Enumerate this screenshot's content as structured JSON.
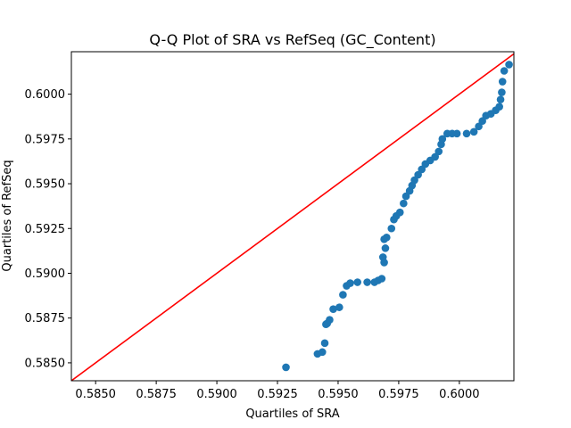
{
  "chart_data": {
    "type": "scatter",
    "title": "Q-Q Plot of SRA vs RefSeq (GC_Content)",
    "xlabel": "Quartiles of SRA",
    "ylabel": "Quartiles of RefSeq",
    "xlim": [
      0.584,
      0.60225
    ],
    "ylim": [
      0.584,
      0.60237
    ],
    "xticks": [
      0.585,
      0.5875,
      0.59,
      0.5925,
      0.595,
      0.5975,
      0.6
    ],
    "xtick_labels": [
      "0.5850",
      "0.5875",
      "0.5900",
      "0.5925",
      "0.5950",
      "0.5975",
      "0.6000"
    ],
    "yticks": [
      0.585,
      0.5875,
      0.59,
      0.5925,
      0.595,
      0.5975,
      0.6
    ],
    "ytick_labels": [
      "0.5850",
      "0.5875",
      "0.5900",
      "0.5925",
      "0.5950",
      "0.5975",
      "0.6000"
    ],
    "grid": false,
    "colors": {
      "points": "#1f77b4",
      "reference_line": "#ff0000"
    },
    "reference_line": {
      "from": [
        0.584,
        0.584
      ],
      "to": [
        0.60225,
        0.60225
      ]
    },
    "points": {
      "x": [
        0.59285,
        0.59415,
        0.59435,
        0.59445,
        0.5945,
        0.59455,
        0.59465,
        0.5948,
        0.59505,
        0.5952,
        0.59535,
        0.5955,
        0.5958,
        0.5962,
        0.5965,
        0.59665,
        0.5968,
        0.5969,
        0.59685,
        0.59695,
        0.5969,
        0.597,
        0.5972,
        0.5973,
        0.5974,
        0.59755,
        0.5977,
        0.5978,
        0.59795,
        0.59805,
        0.59815,
        0.5983,
        0.59845,
        0.5986,
        0.5988,
        0.599,
        0.59915,
        0.59925,
        0.5993,
        0.5995,
        0.5997,
        0.5999,
        0.6003,
        0.6006,
        0.6008,
        0.60095,
        0.6011,
        0.6013,
        0.6015,
        0.60165,
        0.6017,
        0.60175,
        0.60178,
        0.60185,
        0.60205
      ],
      "y": [
        0.58475,
        0.5855,
        0.5856,
        0.5861,
        0.58715,
        0.5872,
        0.5874,
        0.588,
        0.5881,
        0.5888,
        0.5893,
        0.58945,
        0.5895,
        0.5895,
        0.5895,
        0.5896,
        0.5897,
        0.5906,
        0.5909,
        0.5914,
        0.5919,
        0.592,
        0.5925,
        0.593,
        0.5932,
        0.5934,
        0.5939,
        0.5943,
        0.5946,
        0.5949,
        0.5952,
        0.5955,
        0.5958,
        0.5961,
        0.5963,
        0.5965,
        0.5968,
        0.5972,
        0.5975,
        0.5978,
        0.5978,
        0.5978,
        0.5978,
        0.5979,
        0.5982,
        0.5985,
        0.5988,
        0.5989,
        0.5991,
        0.5993,
        0.5997,
        0.6001,
        0.6007,
        0.6013,
        0.60165
      ]
    }
  }
}
